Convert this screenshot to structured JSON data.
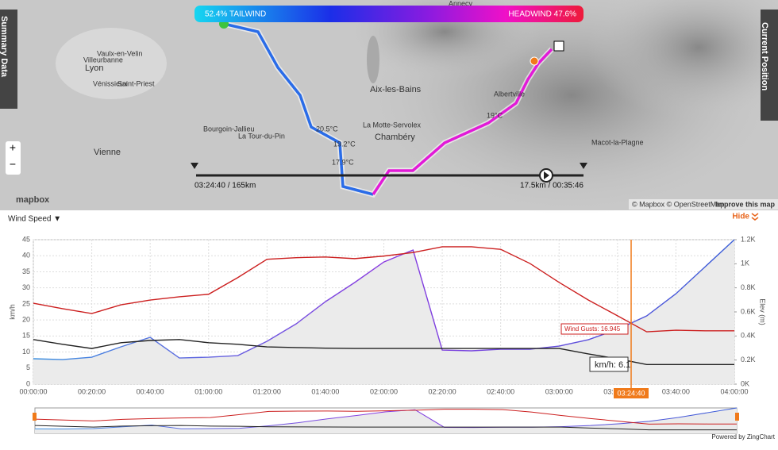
{
  "map": {
    "legend_left": "52.4% TAILWIND",
    "legend_right": "HEADWIND 47.6%",
    "left_tab": "Summary Data",
    "right_tab": "Current Position",
    "places": [
      "Vaulx-en-Velin",
      "Villeurbanne",
      "Lyon",
      "Vénissieux",
      "Saint-Priest",
      "Bourgoin-Jallieu",
      "La Tour-du-Pin",
      "Vienne",
      "Aix-les-Bains",
      "La Motte-Servolex",
      "Chambéry",
      "Albertville",
      "Macot-la-Plagne",
      "Annecy"
    ],
    "temps": [
      "20.5°C",
      "19.2°C",
      "17.9°C",
      "19°C"
    ],
    "time_left": "03:24:40 / 165km",
    "time_right": "17.5km / 00:35:46",
    "zoom_in": "+",
    "zoom_out": "−",
    "logo": "mapbox",
    "attribution": "© Mapbox © OpenStreetMap",
    "improve": "Improve this map"
  },
  "panel": {
    "selector": "Wind Speed ▼",
    "hide": "Hide",
    "gust_tooltip": "Wind Gusts: 16.945",
    "speed_tooltip": "km/h: 6.1",
    "powered": "Powered by ZingChart"
  },
  "chart_data": {
    "type": "line",
    "ylabel": "km/h",
    "y2label": "Elev (m)",
    "x": [
      0,
      10,
      20,
      30,
      40,
      50,
      60,
      70,
      80,
      90,
      100,
      110,
      120,
      130,
      140,
      150,
      160,
      170,
      180,
      190,
      200,
      210,
      220,
      230,
      240
    ],
    "cursor": {
      "value": 204.67,
      "label": "03:24:40"
    },
    "series": [
      {
        "name": "Wind Gusts",
        "color": "#cc1f1f",
        "values": [
          25.2,
          23.5,
          22,
          24.7,
          26.2,
          27.2,
          28,
          33.2,
          38.9,
          39.4,
          39.6,
          39.1,
          39.9,
          41,
          42.8,
          42.8,
          42,
          37.6,
          31.7,
          26.2,
          21.3,
          16.3,
          16.8,
          16.6,
          16.6
        ]
      },
      {
        "name": "Wind Speed",
        "color": "#222222",
        "values": [
          13.9,
          12.4,
          11.1,
          12.9,
          13.6,
          13.9,
          12.9,
          12.4,
          11.6,
          11.4,
          11.2,
          11.1,
          11.1,
          11.1,
          11.1,
          11.1,
          11.1,
          11.1,
          11.1,
          9.4,
          7.9,
          6.1,
          6.1,
          6.1,
          6.1
        ]
      },
      {
        "name": "Elevation",
        "color": "#3a6fd8",
        "axis": "y2",
        "values": [
          211,
          204,
          224,
          310,
          389,
          217,
          224,
          237,
          356,
          501,
          685,
          844,
          1015,
          1114,
          283,
          277,
          290,
          290,
          316,
          369,
          455,
          567,
          751,
          975,
          1200
        ]
      }
    ],
    "xlim": [
      0,
      240
    ],
    "xticks": [
      {
        "value": 0,
        "label": "00:00:00"
      },
      {
        "value": 20,
        "label": "00:20:00"
      },
      {
        "value": 40,
        "label": "00:40:00"
      },
      {
        "value": 60,
        "label": "01:00:00"
      },
      {
        "value": 80,
        "label": "01:20:00"
      },
      {
        "value": 100,
        "label": "01:40:00"
      },
      {
        "value": 120,
        "label": "02:00:00"
      },
      {
        "value": 140,
        "label": "02:20:00"
      },
      {
        "value": 160,
        "label": "02:40:00"
      },
      {
        "value": 180,
        "label": "03:00:00"
      },
      {
        "value": 200,
        "label": "03:20:00"
      },
      {
        "value": 220,
        "label": "03:40:00"
      },
      {
        "value": 240,
        "label": "04:00:00"
      }
    ],
    "ylim": [
      0,
      45
    ],
    "yticks": [
      0,
      5,
      10,
      15,
      20,
      25,
      30,
      35,
      40,
      45
    ],
    "y2lim": [
      0,
      1200
    ],
    "y2ticks": [
      {
        "value": 0,
        "label": "0K"
      },
      {
        "value": 200,
        "label": "0.2K"
      },
      {
        "value": 400,
        "label": "0.4K"
      },
      {
        "value": 600,
        "label": "0.6K"
      },
      {
        "value": 800,
        "label": "0.8K"
      },
      {
        "value": 1000,
        "label": "1K"
      },
      {
        "value": 1200,
        "label": "1.2K"
      }
    ],
    "grid": true
  }
}
